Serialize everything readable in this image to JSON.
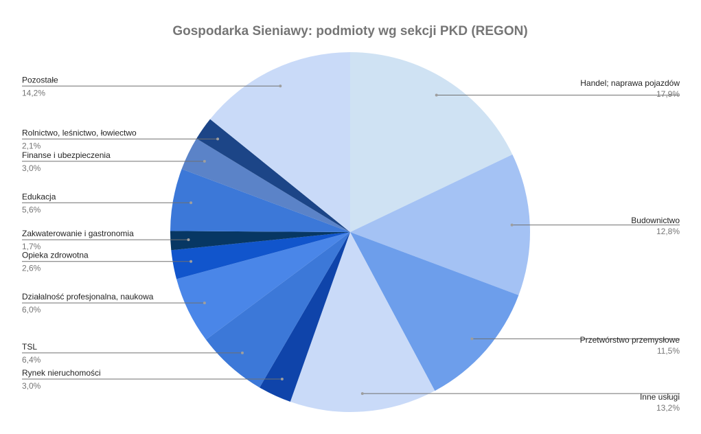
{
  "chart_data": {
    "type": "pie",
    "title": "Gospodarka Sieniawy: podmioty wg sekcji PKD (REGON)",
    "slices": [
      {
        "label": "Handel; naprawa pojazdów",
        "value": 17.9,
        "display": "17,9%",
        "color": "#cfe2f3"
      },
      {
        "label": "Budownictwo",
        "value": 12.8,
        "display": "12,8%",
        "color": "#a4c2f4"
      },
      {
        "label": "Przetwórstwo przemysłowe",
        "value": 11.5,
        "display": "11,5%",
        "color": "#6d9eeb"
      },
      {
        "label": "Inne usługi",
        "value": 13.2,
        "display": "13,2%",
        "color": "#c9daf8"
      },
      {
        "label": "Rynek nieruchomości",
        "value": 3.0,
        "display": "3,0%",
        "color": "#0f44aa"
      },
      {
        "label": "TSL",
        "value": 6.4,
        "display": "6,4%",
        "color": "#3c78d8"
      },
      {
        "label": "Działalność profesjonalna, naukowa",
        "value": 6.0,
        "display": "6,0%",
        "color": "#4a86e8"
      },
      {
        "label": "Opieka zdrowotna",
        "value": 2.6,
        "display": "2,6%",
        "color": "#1155cc"
      },
      {
        "label": "Zakwaterowanie i gastronomia",
        "value": 1.7,
        "display": "1,7%",
        "color": "#073763"
      },
      {
        "label": "Edukacja",
        "value": 5.6,
        "display": "5,6%",
        "color": "#3c78d8"
      },
      {
        "label": "Finanse i ubezpieczenia",
        "value": 3.0,
        "display": "3,0%",
        "color": "#5b83c8"
      },
      {
        "label": "Rolnictwo, leśnictwo, łowiectwo",
        "value": 2.1,
        "display": "2,1%",
        "color": "#1c4587"
      },
      {
        "label": "Pozostałe",
        "value": 14.2,
        "display": "14,2%",
        "color": "#c9daf8"
      }
    ],
    "legend": "none",
    "labels": "outside with leader lines"
  }
}
